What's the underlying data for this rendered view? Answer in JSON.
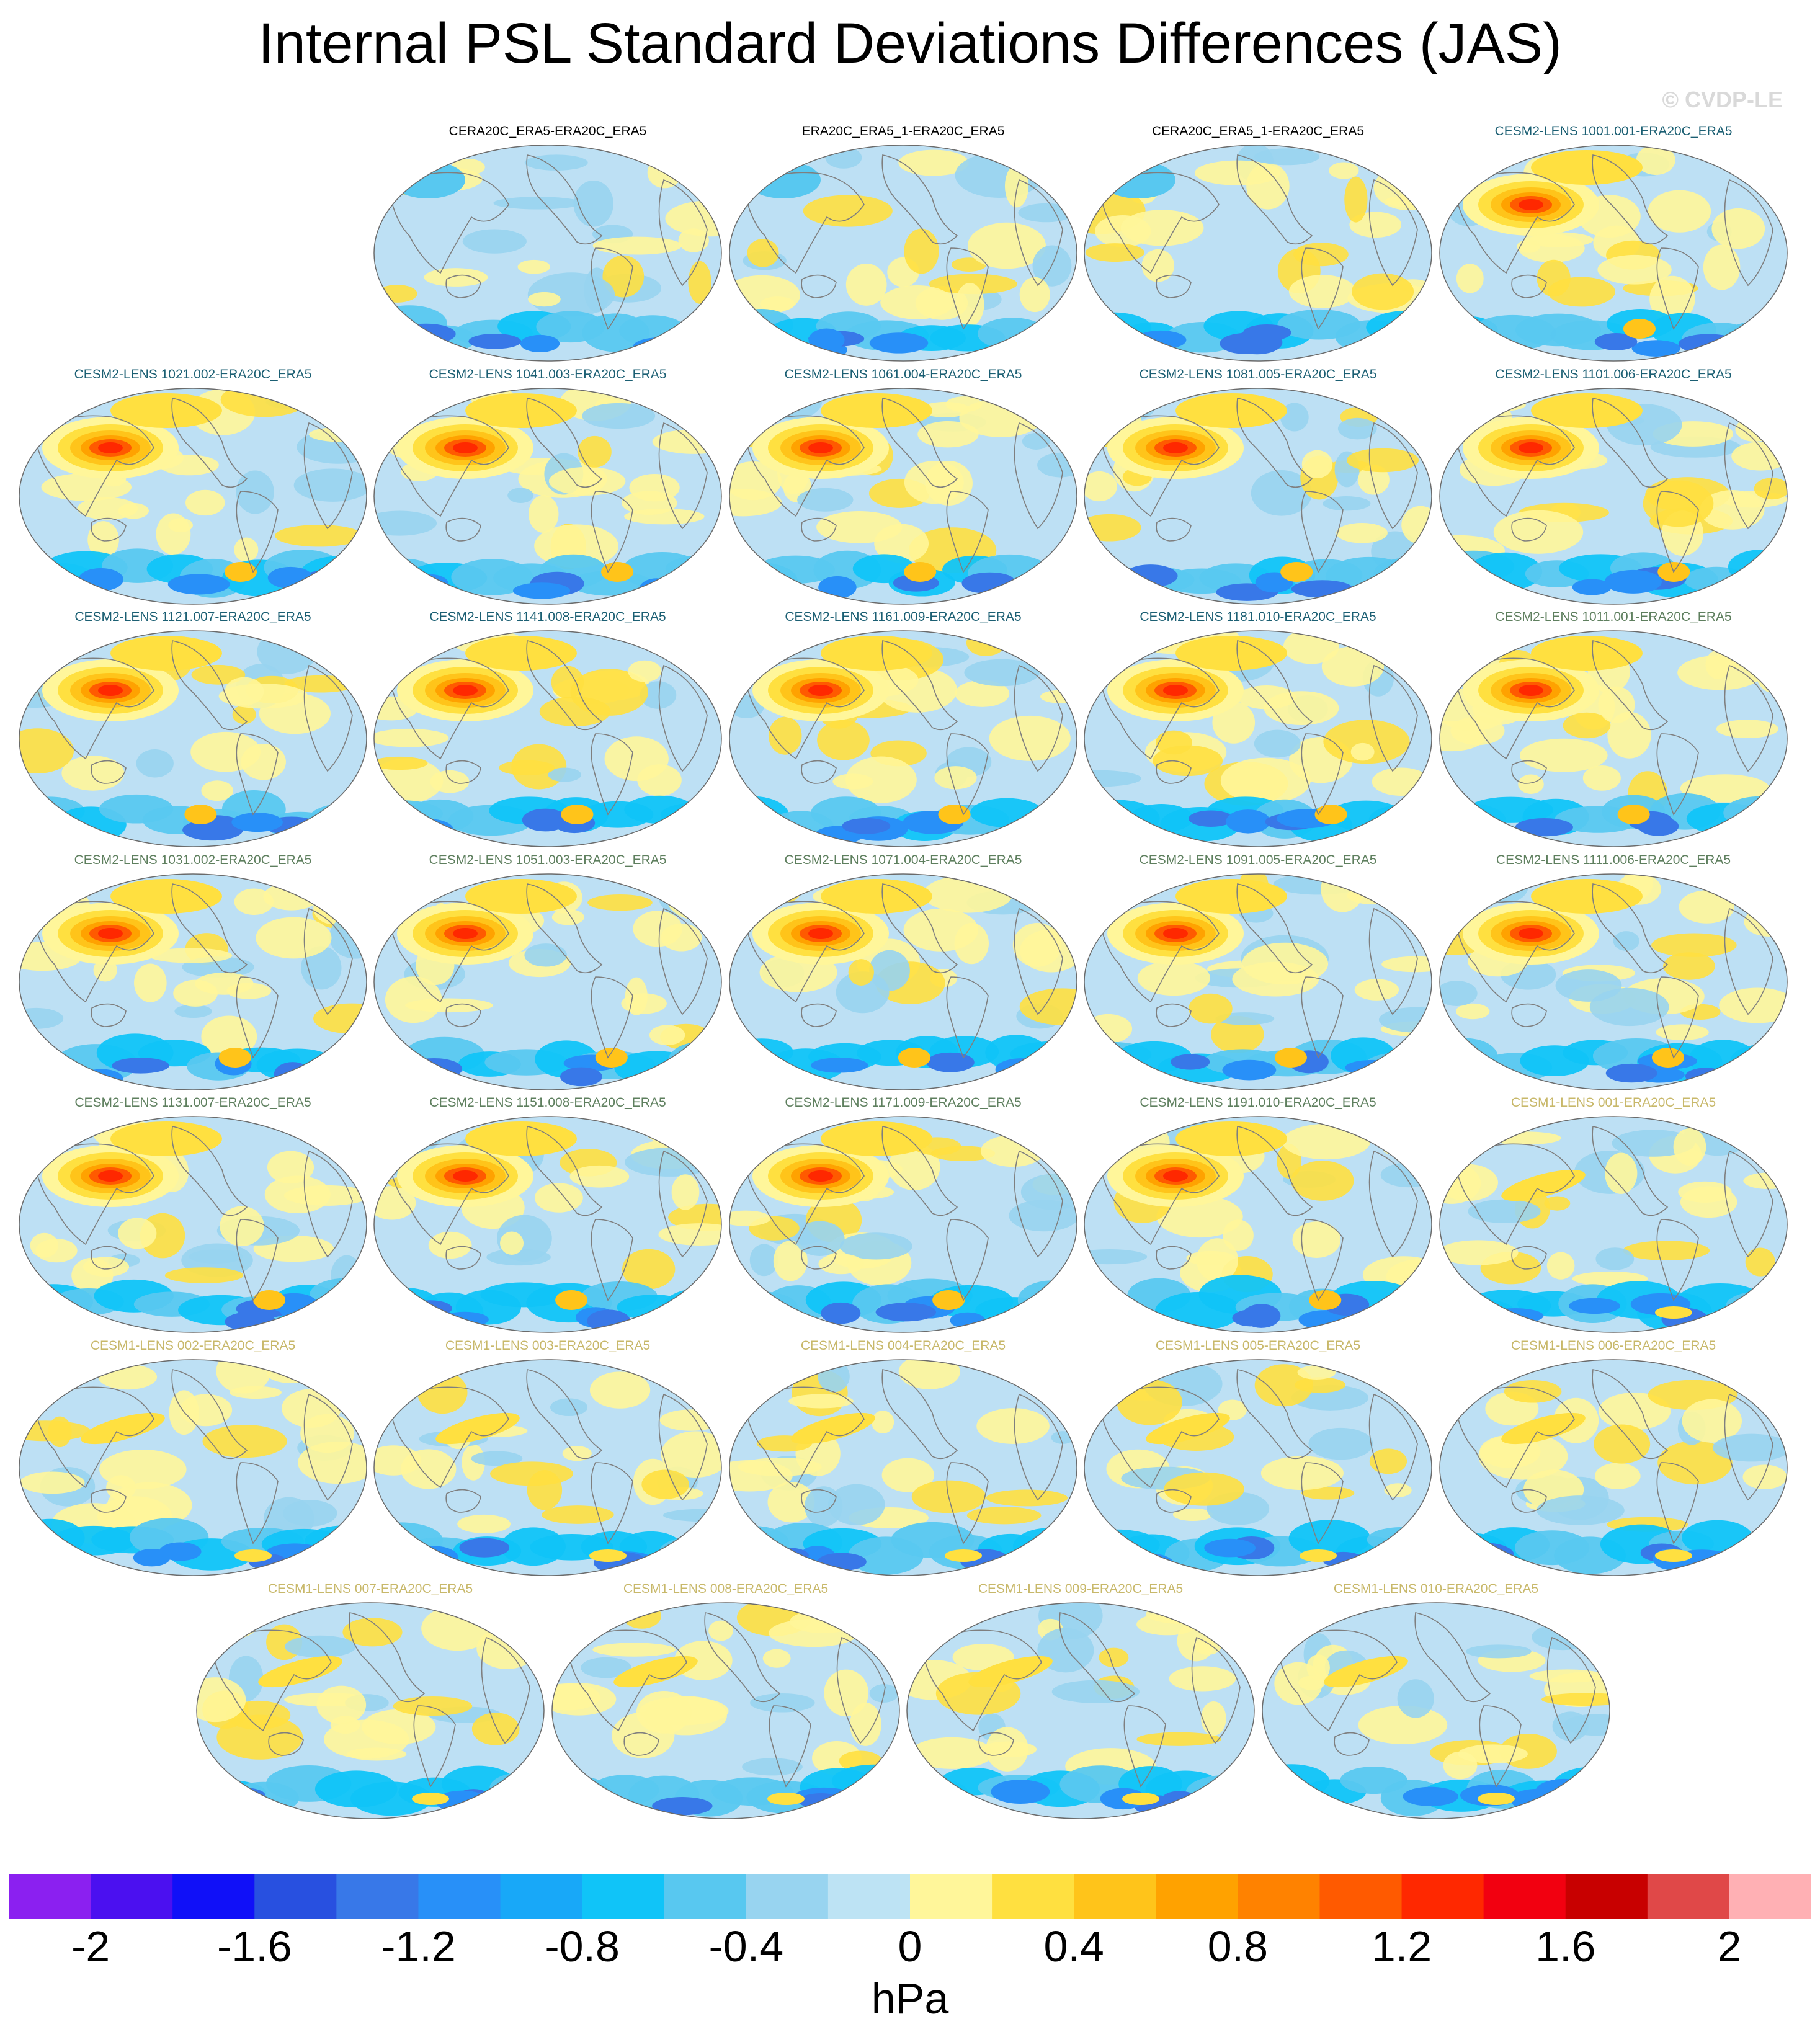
{
  "title": "Internal PSL Standard Deviations Differences (JAS)",
  "copyright": "© CVDP-LE",
  "units": "hPa",
  "palette": {
    "ocean_base": "#bde0f4",
    "coastline": "#7f7f7f",
    "map_outline": "#6b6b6b"
  },
  "chart_data": {
    "type": "heatmap",
    "title": "Internal PSL Standard Deviations Differences (JAS)",
    "colorbar": {
      "label": "hPa",
      "range": [
        -2.2,
        2.2
      ],
      "interval": 0.2,
      "colors": [
        "#8b20f0",
        "#4b10f0",
        "#1010f8",
        "#2850e0",
        "#3878e8",
        "#2890f8",
        "#18a8f8",
        "#10c4f8",
        "#58c8f0",
        "#98d4f0",
        "#bde3f4",
        "#fff69a",
        "#ffe040",
        "#ffc41a",
        "#ffa200",
        "#ff8200",
        "#ff5a00",
        "#ff2800",
        "#f20010",
        "#c80000",
        "#e04848",
        "#ffb0b4"
      ],
      "tick_labels": [
        "-2",
        "-1.6",
        "-1.2",
        "-0.8",
        "-0.4",
        "0",
        "0.4",
        "0.8",
        "1.2",
        "1.6",
        "2"
      ]
    },
    "panels": [
      {
        "label": "CERA20C_ERA5-ERA20C_ERA5",
        "group": "obs"
      },
      {
        "label": "ERA20C_ERA5_1-ERA20C_ERA5",
        "group": "obs"
      },
      {
        "label": "CERA20C_ERA5_1-ERA20C_ERA5",
        "group": "obs"
      },
      {
        "label": "CESM2-LENS 1001.001-ERA20C_ERA5",
        "group": "c2a"
      },
      {
        "label": "CESM2-LENS 1021.002-ERA20C_ERA5",
        "group": "c2a"
      },
      {
        "label": "CESM2-LENS 1041.003-ERA20C_ERA5",
        "group": "c2a"
      },
      {
        "label": "CESM2-LENS 1061.004-ERA20C_ERA5",
        "group": "c2a"
      },
      {
        "label": "CESM2-LENS 1081.005-ERA20C_ERA5",
        "group": "c2a"
      },
      {
        "label": "CESM2-LENS 1101.006-ERA20C_ERA5",
        "group": "c2a"
      },
      {
        "label": "CESM2-LENS 1121.007-ERA20C_ERA5",
        "group": "c2a"
      },
      {
        "label": "CESM2-LENS 1141.008-ERA20C_ERA5",
        "group": "c2a"
      },
      {
        "label": "CESM2-LENS 1161.009-ERA20C_ERA5",
        "group": "c2a"
      },
      {
        "label": "CESM2-LENS 1181.010-ERA20C_ERA5",
        "group": "c2a"
      },
      {
        "label": "CESM2-LENS 1011.001-ERA20C_ERA5",
        "group": "c2b"
      },
      {
        "label": "CESM2-LENS 1031.002-ERA20C_ERA5",
        "group": "c2b"
      },
      {
        "label": "CESM2-LENS 1051.003-ERA20C_ERA5",
        "group": "c2b"
      },
      {
        "label": "CESM2-LENS 1071.004-ERA20C_ERA5",
        "group": "c2b"
      },
      {
        "label": "CESM2-LENS 1091.005-ERA20C_ERA5",
        "group": "c2b"
      },
      {
        "label": "CESM2-LENS 1111.006-ERA20C_ERA5",
        "group": "c2b"
      },
      {
        "label": "CESM2-LENS 1131.007-ERA20C_ERA5",
        "group": "c2b"
      },
      {
        "label": "CESM2-LENS 1151.008-ERA20C_ERA5",
        "group": "c2b"
      },
      {
        "label": "CESM2-LENS 1171.009-ERA20C_ERA5",
        "group": "c2b"
      },
      {
        "label": "CESM2-LENS 1191.010-ERA20C_ERA5",
        "group": "c2b"
      },
      {
        "label": "CESM1-LENS 001-ERA20C_ERA5",
        "group": "c1"
      },
      {
        "label": "CESM1-LENS 002-ERA20C_ERA5",
        "group": "c1"
      },
      {
        "label": "CESM1-LENS 003-ERA20C_ERA5",
        "group": "c1"
      },
      {
        "label": "CESM1-LENS 004-ERA20C_ERA5",
        "group": "c1"
      },
      {
        "label": "CESM1-LENS 005-ERA20C_ERA5",
        "group": "c1"
      },
      {
        "label": "CESM1-LENS 006-ERA20C_ERA5",
        "group": "c1"
      },
      {
        "label": "CESM1-LENS 007-ERA20C_ERA5",
        "group": "c1"
      },
      {
        "label": "CESM1-LENS 008-ERA20C_ERA5",
        "group": "c1"
      },
      {
        "label": "CESM1-LENS 009-ERA20C_ERA5",
        "group": "c1"
      },
      {
        "label": "CESM1-LENS 010-ERA20C_ERA5",
        "group": "c1"
      }
    ]
  }
}
